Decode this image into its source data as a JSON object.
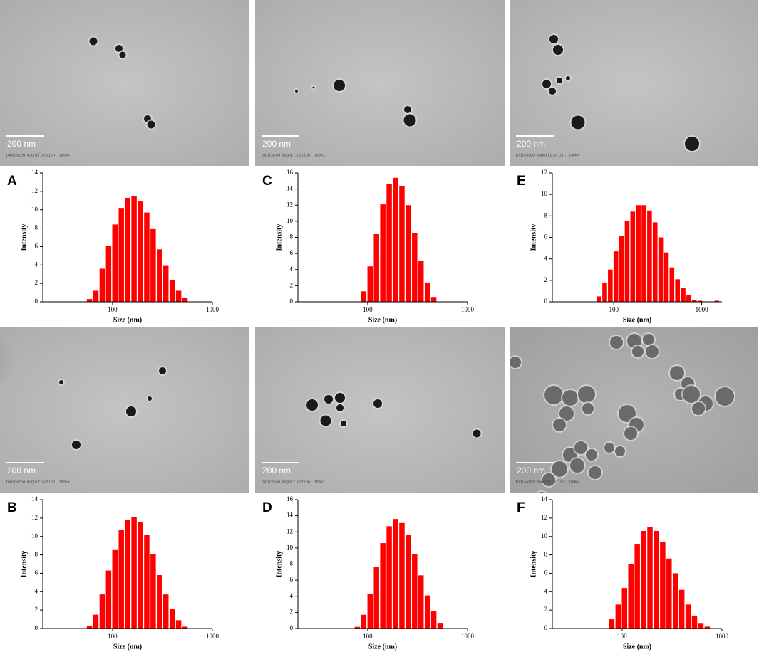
{
  "chart_data": [
    {
      "type": "bar",
      "panel_label": "A",
      "xlabel": "Size (nm)",
      "ylabel": "Intensity",
      "color": "#ff0000",
      "log_x": true,
      "x": [
        58.77,
        68.06,
        78.82,
        91.28,
        105.7,
        122.4,
        141.8,
        164.2,
        190.1,
        220.2,
        255.0,
        295.3,
        342.0,
        396.1,
        458.7,
        531.2
      ],
      "values": [
        0.3,
        1.2,
        3.6,
        6.1,
        8.4,
        10.2,
        11.3,
        11.5,
        10.9,
        9.7,
        7.9,
        5.7,
        3.9,
        2.4,
        1.2,
        0.4
      ],
      "xlim": [
        20,
        1000
      ],
      "xticks": [
        100,
        1000
      ],
      "ylim": [
        0,
        14
      ],
      "yticks": [
        0,
        2,
        4,
        6,
        8,
        10,
        12,
        14
      ]
    },
    {
      "type": "bar",
      "panel_label": "C",
      "xlabel": "Size (nm)",
      "ylabel": "Intensity",
      "color": "#ff0000",
      "log_x": true,
      "x": [
        91.28,
        105.7,
        122.4,
        141.8,
        164.2,
        190.1,
        220.2,
        255.0,
        295.3,
        342.0,
        396.1,
        458.7
      ],
      "values": [
        1.3,
        4.4,
        8.4,
        12.1,
        14.6,
        15.4,
        14.4,
        12.0,
        8.5,
        5.1,
        2.4,
        0.6
      ],
      "xlim": [
        20,
        1000
      ],
      "xticks": [
        100,
        1000
      ],
      "ylim": [
        0,
        16
      ],
      "yticks": [
        0,
        2,
        4,
        6,
        8,
        10,
        12,
        14,
        16
      ]
    },
    {
      "type": "bar",
      "panel_label": "E",
      "xlabel": "Size (nm)",
      "ylabel": "Intensity",
      "color": "#ff0000",
      "log_x": true,
      "x": [
        68.06,
        78.82,
        91.28,
        105.7,
        122.4,
        141.8,
        164.2,
        190.1,
        220.2,
        255.0,
        295.3,
        342.0,
        396.1,
        458.7,
        531.2,
        615.1,
        712.4,
        825.0,
        955.4,
        1106,
        1281,
        1484
      ],
      "values": [
        0.5,
        1.8,
        3.0,
        4.7,
        6.1,
        7.5,
        8.4,
        9.0,
        9.0,
        8.5,
        7.4,
        6.0,
        4.6,
        3.2,
        2.1,
        1.3,
        0.6,
        0.2,
        0.1,
        0,
        0,
        0.1
      ],
      "xlim": [
        20,
        1700
      ],
      "xticks": [
        100,
        1000
      ],
      "ylim": [
        0,
        12
      ],
      "yticks": [
        0,
        2,
        4,
        6,
        8,
        10,
        12
      ]
    },
    {
      "type": "bar",
      "panel_label": "B",
      "xlabel": "Size (nm)",
      "ylabel": "Intensity",
      "color": "#ff0000",
      "log_x": true,
      "x": [
        58.77,
        68.06,
        78.82,
        91.28,
        105.7,
        122.4,
        141.8,
        164.2,
        190.1,
        220.2,
        255.0,
        295.3,
        342.0,
        396.1,
        458.7,
        531.2
      ],
      "values": [
        0.3,
        1.5,
        3.7,
        6.3,
        8.6,
        10.7,
        11.8,
        12.1,
        11.6,
        10.2,
        8.1,
        5.8,
        3.7,
        2.1,
        0.9,
        0.2
      ],
      "xlim": [
        20,
        1000
      ],
      "xticks": [
        100,
        1000
      ],
      "ylim": [
        0,
        14
      ],
      "yticks": [
        0,
        2,
        4,
        6,
        8,
        10,
        12,
        14
      ]
    },
    {
      "type": "bar",
      "panel_label": "D",
      "xlabel": "Size (nm)",
      "ylabel": "Intensity",
      "color": "#ff0000",
      "log_x": true,
      "x": [
        78.82,
        91.28,
        105.7,
        122.4,
        141.8,
        164.2,
        190.1,
        220.2,
        255.0,
        295.3,
        342.0,
        396.1,
        458.7,
        531.2
      ],
      "values": [
        0.2,
        1.7,
        4.3,
        7.6,
        10.6,
        12.7,
        13.6,
        13.1,
        11.6,
        9.2,
        6.6,
        4.1,
        2.2,
        0.7
      ],
      "xlim": [
        20,
        1000
      ],
      "xticks": [
        100,
        1000
      ],
      "ylim": [
        0,
        16
      ],
      "yticks": [
        0,
        2,
        4,
        6,
        8,
        10,
        12,
        14,
        16
      ]
    },
    {
      "type": "bar",
      "panel_label": "F",
      "xlabel": "Size (nm)",
      "ylabel": "Intensity",
      "color": "#ff0000",
      "log_x": true,
      "x": [
        78.82,
        91.28,
        105.7,
        122.4,
        141.8,
        164.2,
        190.1,
        220.2,
        255.0,
        295.3,
        342.0,
        396.1,
        458.7,
        531.2,
        615.1,
        712.4
      ],
      "values": [
        1.0,
        2.6,
        4.4,
        7.0,
        9.2,
        10.6,
        11.0,
        10.6,
        9.4,
        7.6,
        6.0,
        4.2,
        2.6,
        1.4,
        0.6,
        0.2
      ],
      "xlim": [
        20,
        1000
      ],
      "xticks": [
        100,
        1000
      ],
      "ylim": [
        0,
        14
      ],
      "yticks": [
        0,
        2,
        4,
        6,
        8,
        10,
        12,
        14
      ]
    }
  ],
  "images": [
    {
      "scale_bar": "200 nm",
      "magnification": "Indicated magnification: 100kx"
    },
    {
      "scale_bar": "200 nm",
      "magnification": "Indicated magnification: 100kx"
    },
    {
      "scale_bar": "200 nm",
      "magnification": "Indicated magnification: 100kx"
    },
    {
      "scale_bar": "200 nm",
      "magnification": "Indicated magnification: 100kx"
    },
    {
      "scale_bar": "200 nm",
      "magnification": "Indicated magnification: 100kx"
    },
    {
      "scale_bar": "200 nm",
      "magnification": "Indicated magnification: 100kx"
    }
  ]
}
